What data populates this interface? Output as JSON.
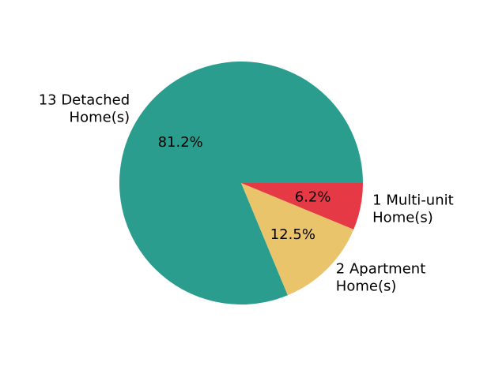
{
  "chart_data": {
    "type": "pie",
    "slices": [
      {
        "label_lines": [
          "13 Detached",
          "Home(s)"
        ],
        "value": 13,
        "percent_label": "81.2%",
        "color": "#2a9d8f"
      },
      {
        "label_lines": [
          "2 Apartment",
          "Home(s)"
        ],
        "value": 2,
        "percent_label": "12.5%",
        "color": "#e9c46a"
      },
      {
        "label_lines": [
          "1 Multi-unit",
          "Home(s)"
        ],
        "value": 1,
        "percent_label": "6.2%",
        "color": "#e63946"
      }
    ],
    "start_angle_deg": 0,
    "direction": "counterclockwise"
  }
}
